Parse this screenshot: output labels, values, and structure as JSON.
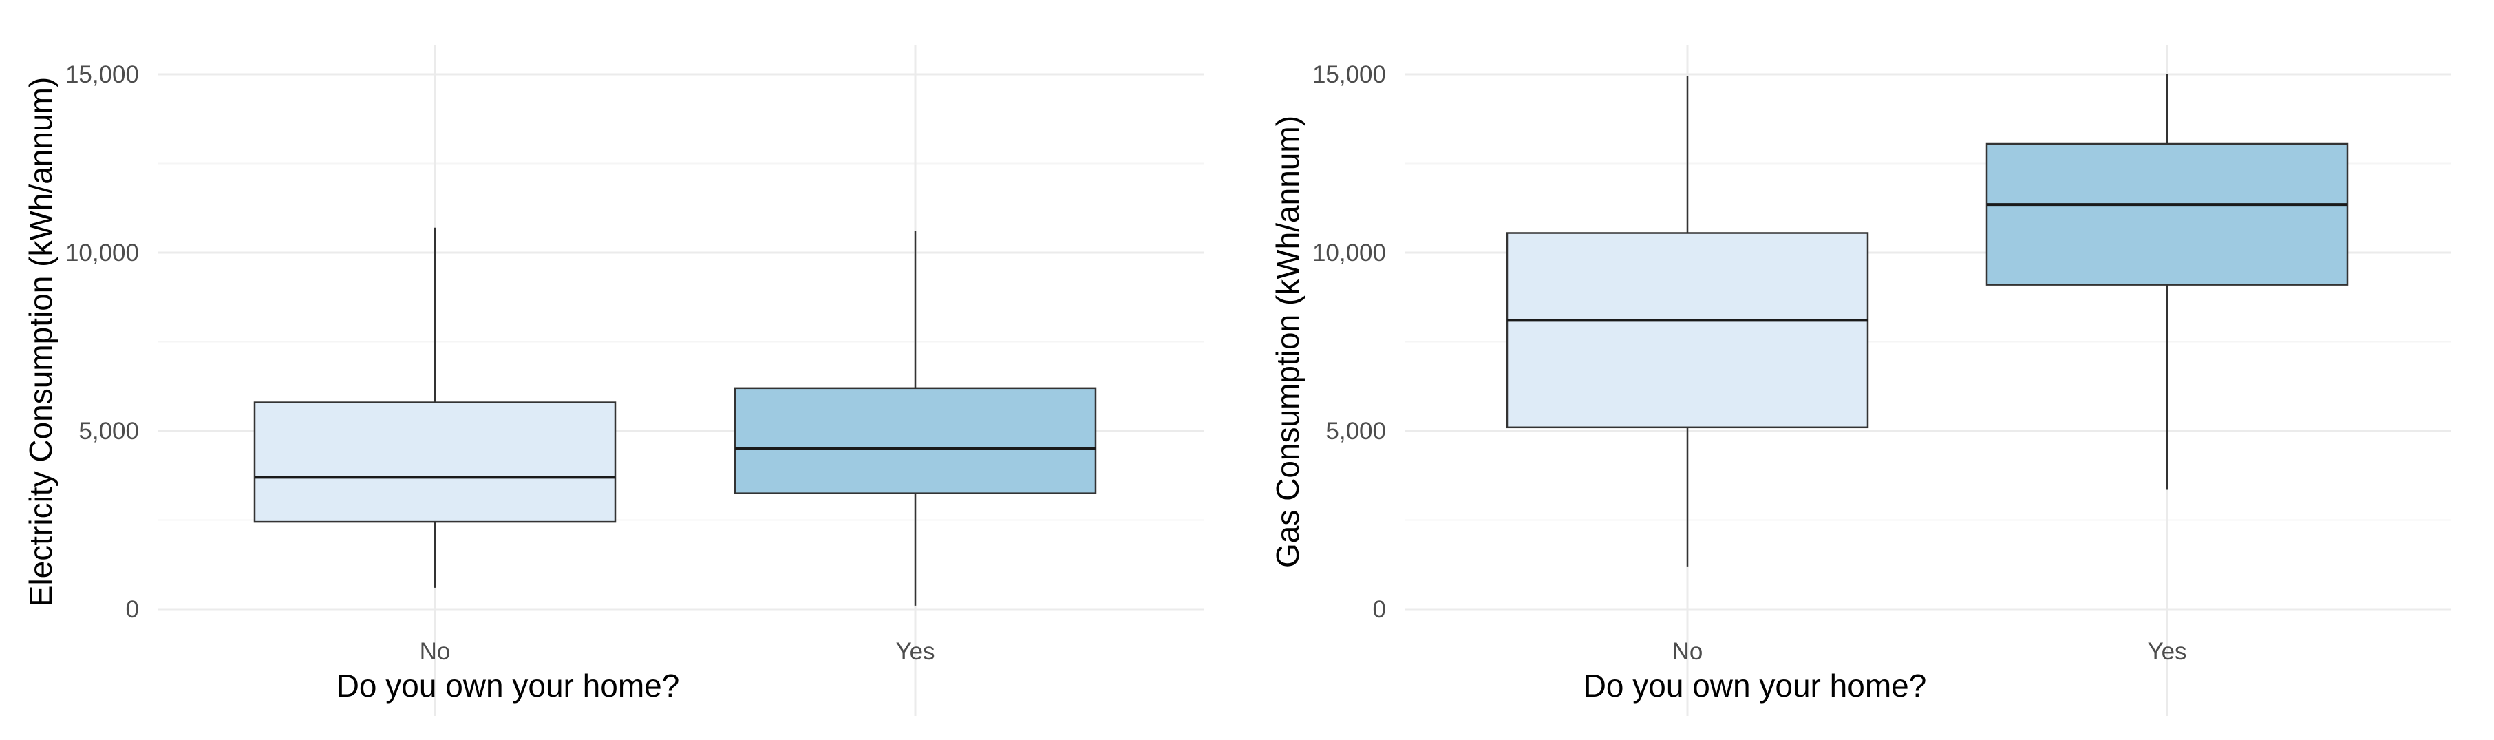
{
  "chart_data": [
    {
      "type": "box",
      "xlabel": "Do you own your home?",
      "ylabel": "Electricity Consumption (kWh/annum)",
      "ylim": [
        0,
        15000
      ],
      "yticks": [
        0,
        5000,
        10000,
        15000
      ],
      "ytick_labels": [
        "0",
        "5,000",
        "10,000",
        "15,000"
      ],
      "categories": [
        "No",
        "Yes"
      ],
      "boxes": [
        {
          "category": "No",
          "min": 600,
          "q1": 2450,
          "median": 3700,
          "q3": 5800,
          "max": 10700,
          "fill": "#deebf7"
        },
        {
          "category": "Yes",
          "min": 100,
          "q1": 3250,
          "median": 4500,
          "q3": 6200,
          "max": 10600,
          "fill": "#9ecae1"
        }
      ],
      "grid": true
    },
    {
      "type": "box",
      "xlabel": "Do you own your home?",
      "ylabel": "Gas Consumption (kWh/annum)",
      "ylim": [
        0,
        15000
      ],
      "yticks": [
        0,
        5000,
        10000,
        15000
      ],
      "ytick_labels": [
        "0",
        "5,000",
        "10,000",
        "15,000"
      ],
      "categories": [
        "No",
        "Yes"
      ],
      "boxes": [
        {
          "category": "No",
          "min": 1200,
          "q1": 5100,
          "median": 8100,
          "q3": 10550,
          "max": 14950,
          "fill": "#deebf7"
        },
        {
          "category": "Yes",
          "min": 3350,
          "q1": 9100,
          "median": 11350,
          "q3": 13050,
          "max": 15000,
          "fill": "#9ecae1"
        }
      ],
      "grid": true
    }
  ]
}
